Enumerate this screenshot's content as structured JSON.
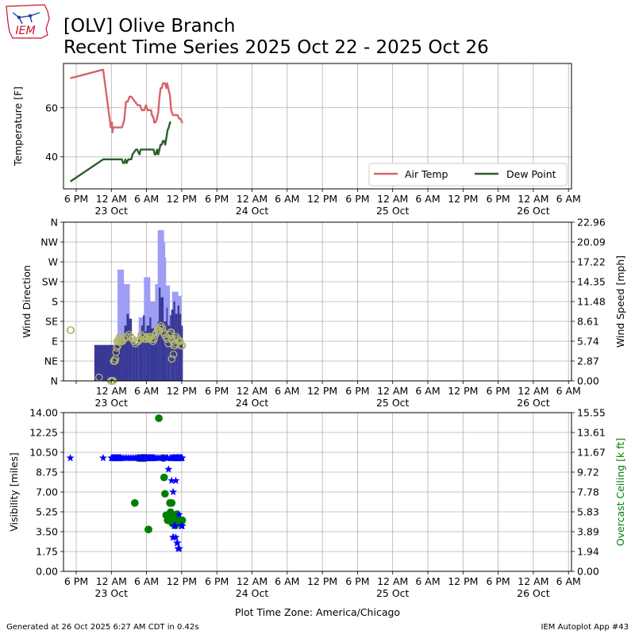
{
  "header": {
    "logo_text": "IEM",
    "title_line1": "[OLV] Olive Branch",
    "title_line2": "Recent Time Series 2025 Oct 22 - 2025 Oct 26"
  },
  "footer": {
    "generated": "Generated at 26 Oct 2025 6:27 AM CDT in 0.42s",
    "app": "IEM Autoplot App #43"
  },
  "colors": {
    "air_temp": "#d9636a",
    "dew_point": "#2e5e2e",
    "wind_speed": "#383896",
    "wind_gust": "#9e9ef5",
    "wind_dir_marker": "#b3b56b",
    "visibility": "#0000ff",
    "ceiling": "#008000"
  },
  "chart_data": [
    {
      "type": "line",
      "ylabel": "Temperature [F]",
      "ylim": [
        27,
        78
      ],
      "yticks": [
        40,
        60
      ],
      "legend_placement": "lower-right",
      "grid": true,
      "x_tick_labels": [
        "6 PM",
        "12 AM",
        "6 AM",
        "12 PM",
        "6 PM",
        "12 AM",
        "6 AM",
        "12 PM",
        "6 PM",
        "12 AM",
        "6 AM",
        "12 PM",
        "6 PM",
        "12 AM",
        "6 AM"
      ],
      "x_date_labels": [
        "23 Oct",
        "24 Oct",
        "25 Oct",
        "26 Oct"
      ],
      "series": [
        {
          "name": "Air Temp",
          "x": [
            -1.0,
            4.6,
            5.9,
            6.1,
            6.2,
            6.3,
            6.4,
            6.7,
            7.8,
            8.2,
            8.5,
            8.8,
            9.1,
            9.4,
            10.5,
            10.9,
            11.2,
            11.6,
            11.9,
            12.2,
            12.8,
            12.9,
            13.0,
            13.1,
            13.2,
            13.3,
            13.5,
            13.7,
            14.0,
            14.2,
            14.4,
            14.6,
            14.8,
            15.1,
            15.4,
            15.5,
            15.7,
            15.9,
            16.0,
            16.2,
            16.5,
            17.3,
            17.6,
            17.8,
            18.1,
            18.2
          ],
          "y": [
            72,
            75.5,
            52,
            54,
            50,
            52,
            52,
            52,
            52,
            55,
            62.5,
            62.5,
            64.5,
            64.5,
            61,
            61,
            59,
            59,
            61,
            59,
            59,
            57,
            57,
            56,
            56,
            54,
            54,
            55,
            58,
            64,
            68,
            68,
            70,
            70,
            68,
            70,
            68,
            66,
            65,
            59,
            57,
            57,
            55.5,
            55.5,
            54,
            54
          ]
        },
        {
          "name": "Dew Point",
          "x": [
            -1.0,
            4.6,
            7.8,
            8.0,
            8.2,
            8.4,
            8.6,
            8.9,
            9.1,
            9.4,
            9.6,
            10.2,
            10.4,
            10.8,
            11.0,
            11.6,
            12.2,
            12.8,
            13.2,
            13.4,
            13.6,
            13.8,
            14.0,
            14.2,
            14.4,
            14.6,
            14.8,
            15.0,
            15.2,
            15.4,
            15.6,
            15.8,
            16.0,
            16.2
          ],
          "y": [
            30,
            39,
            39,
            37.5,
            37.5,
            39,
            37.5,
            39,
            39,
            39,
            41,
            43,
            43,
            41,
            43,
            43,
            43,
            43,
            43,
            41,
            41,
            43,
            41,
            43,
            45,
            45,
            46.5,
            46.5,
            45,
            48,
            51,
            52,
            54,
            54
          ]
        }
      ]
    },
    {
      "type": "bar",
      "ylabel": "Wind Direction",
      "y2label": "Wind Speed [mph]",
      "ylim": [
        0,
        360
      ],
      "yticks": [
        "N",
        "NE",
        "E",
        "SE",
        "S",
        "SW",
        "W",
        "NW",
        "N"
      ],
      "y2lim": [
        0,
        22.96
      ],
      "y2ticks": [
        "0.00",
        "2.87",
        "5.74",
        "8.61",
        "11.48",
        "14.35",
        "17.22",
        "20.09",
        "22.96"
      ],
      "grid": true,
      "x_tick_labels": [
        "12 AM",
        "6 AM",
        "12 PM",
        "6 PM",
        "12 AM",
        "6 AM",
        "12 PM",
        "6 PM",
        "12 AM",
        "6 AM",
        "12 PM",
        "6 PM",
        "12 AM",
        "6 AM"
      ],
      "x_date_labels": [
        "23 Oct",
        "24 Oct",
        "25 Oct",
        "26 Oct"
      ],
      "speed_segments": [
        {
          "start": 3.1,
          "end": 7.8,
          "speed": 5.2
        },
        {
          "start": 7.8,
          "end": 8.2,
          "speed": 6.3
        },
        {
          "start": 8.2,
          "end": 8.6,
          "speed": 8.0
        },
        {
          "start": 8.6,
          "end": 9.0,
          "speed": 9.7
        },
        {
          "start": 9.0,
          "end": 9.5,
          "speed": 9.0
        },
        {
          "start": 9.5,
          "end": 10.1,
          "speed": 5.7
        },
        {
          "start": 10.1,
          "end": 10.6,
          "speed": 5.5
        },
        {
          "start": 10.6,
          "end": 11.1,
          "speed": 6.6
        },
        {
          "start": 11.1,
          "end": 11.4,
          "speed": 8.0
        },
        {
          "start": 11.4,
          "end": 11.7,
          "speed": 9.5
        },
        {
          "start": 11.7,
          "end": 12.0,
          "speed": 7.2
        },
        {
          "start": 12.0,
          "end": 12.5,
          "speed": 8.0
        },
        {
          "start": 12.5,
          "end": 12.8,
          "speed": 9.2
        },
        {
          "start": 12.8,
          "end": 13.4,
          "speed": 7.6
        },
        {
          "start": 13.4,
          "end": 13.9,
          "speed": 6.6
        },
        {
          "start": 13.9,
          "end": 14.1,
          "speed": 8.6
        },
        {
          "start": 14.1,
          "end": 14.4,
          "speed": 13.5
        },
        {
          "start": 14.4,
          "end": 14.9,
          "speed": 12.1
        },
        {
          "start": 14.9,
          "end": 15.4,
          "speed": 8.6
        },
        {
          "start": 15.4,
          "end": 15.6,
          "speed": 10.6
        },
        {
          "start": 15.6,
          "end": 16.0,
          "speed": 8.0
        },
        {
          "start": 16.0,
          "end": 16.2,
          "speed": 9.5
        },
        {
          "start": 16.2,
          "end": 16.6,
          "speed": 10.3
        },
        {
          "start": 16.6,
          "end": 16.9,
          "speed": 11.5
        },
        {
          "start": 16.9,
          "end": 17.3,
          "speed": 9.7
        },
        {
          "start": 17.3,
          "end": 17.6,
          "speed": 10.9
        },
        {
          "start": 17.6,
          "end": 17.9,
          "speed": 9.7
        },
        {
          "start": 17.9,
          "end": 18.2,
          "speed": 8.0
        }
      ],
      "gusts": [
        {
          "x": 7.6,
          "speed": 16.1
        },
        {
          "x": 8.6,
          "speed": 14.0
        },
        {
          "x": 11.2,
          "speed": 9.2
        },
        {
          "x": 12.1,
          "speed": 15.0
        },
        {
          "x": 13.1,
          "speed": 11.5
        },
        {
          "x": 14.0,
          "speed": 14.0
        },
        {
          "x": 14.45,
          "speed": 21.8
        },
        {
          "x": 14.65,
          "speed": 20.1
        },
        {
          "x": 14.8,
          "speed": 17.8
        },
        {
          "x": 15.45,
          "speed": 13.8
        },
        {
          "x": 16.9,
          "speed": 12.9
        },
        {
          "x": 17.4,
          "speed": 12.3
        }
      ],
      "direction_points": {
        "x": [
          -1.0,
          3.9,
          5.9,
          6.0,
          6.1,
          6.2,
          6.3,
          6.4,
          6.5,
          6.6,
          6.7,
          6.8,
          6.9,
          7.0,
          7.1,
          7.2,
          7.3,
          7.4,
          7.5,
          7.6,
          7.7,
          7.9,
          8.2,
          8.5,
          8.8,
          9.0,
          9.3,
          9.6,
          9.9,
          10.1,
          10.4,
          10.6,
          10.9,
          11.1,
          11.3,
          11.5,
          11.7,
          11.9,
          12.1,
          12.3,
          12.5,
          12.7,
          12.9,
          13.1,
          13.3,
          13.5,
          13.7,
          13.9,
          14.1,
          14.3,
          14.5,
          14.7,
          14.9,
          15.1,
          15.3,
          15.5,
          15.7,
          15.9,
          16.1,
          16.3,
          16.5,
          16.7,
          16.9,
          17.1,
          17.3,
          17.5,
          17.7,
          17.9,
          18.1,
          -0.9,
          16.2,
          16.3,
          16.6,
          16.8,
          16.85
        ],
        "y": [
          115,
          8,
          0,
          0,
          0,
          0,
          0,
          45,
          45,
          45,
          50,
          65,
          75,
          90,
          80,
          90,
          95,
          100,
          90,
          90,
          90,
          90,
          95,
          100,
          100,
          105,
          100,
          95,
          90,
          85,
          90,
          90,
          95,
          105,
          100,
          100,
          95,
          95,
          100,
          95,
          100,
          100,
          95,
          90,
          95,
          105,
          110,
          115,
          115,
          120,
          125,
          120,
          110,
          105,
          100,
          95,
          85,
          105,
          110,
          95,
          90,
          80,
          95,
          100,
          95,
          90,
          90,
          80,
          80,
          115,
          110,
          50,
          60,
          80,
          85
        ]
      }
    },
    {
      "type": "scatter",
      "ylabel": "Visibility [miles]",
      "y2label": "Overcast Ceiling [k ft]",
      "ylim": [
        0,
        14
      ],
      "yticks": [
        "0.00",
        "1.75",
        "3.50",
        "5.25",
        "7.00",
        "8.75",
        "10.50",
        "12.25",
        "14.00"
      ],
      "y2lim": [
        0,
        15.55
      ],
      "y2ticks": [
        "0.00",
        "1.94",
        "3.89",
        "5.83",
        "7.78",
        "9.72",
        "11.67",
        "13.61",
        "15.55"
      ],
      "xlabel": "Plot Time Zone: America/Chicago",
      "grid": true,
      "x_tick_labels": [
        "6 PM",
        "12 AM",
        "6 AM",
        "12 PM",
        "6 PM",
        "12 AM",
        "6 AM",
        "12 PM",
        "6 PM",
        "12 AM",
        "6 AM",
        "12 PM",
        "6 PM",
        "12 AM",
        "6 AM"
      ],
      "x_date_labels": [
        "23 Oct",
        "24 Oct",
        "25 Oct",
        "26 Oct"
      ],
      "visibility": {
        "x": [
          -1.0,
          4.6,
          6.0,
          6.1,
          6.2,
          6.3,
          6.4,
          6.5,
          6.6,
          6.7,
          6.8,
          6.9,
          7.0,
          7.1,
          7.2,
          7.3,
          7.4,
          7.5,
          7.6,
          7.7,
          8.0,
          8.3,
          8.6,
          8.9,
          9.2,
          9.5,
          9.8,
          10.1,
          10.4,
          10.7,
          11.0,
          11.1,
          11.2,
          11.3,
          11.4,
          11.5,
          11.6,
          11.7,
          11.8,
          11.9,
          12.0,
          12.1,
          12.2,
          12.3,
          12.4,
          12.5,
          12.6,
          12.7,
          12.8,
          12.9,
          13.0,
          13.1,
          13.2,
          13.3,
          13.5,
          13.8,
          14.1,
          14.4,
          14.7,
          15.0,
          15.3,
          15.6,
          16.0,
          16.2,
          16.4,
          16.5,
          16.6,
          16.7,
          16.8,
          16.9,
          17.0,
          17.1,
          17.2,
          17.3,
          17.4,
          17.5,
          17.6,
          17.7,
          17.8,
          17.9,
          18.0,
          18.1,
          16.5,
          16.6,
          17.0,
          17.2,
          17.3,
          17.4,
          17.6,
          17.9,
          18.0,
          18.1,
          15.5,
          15.75,
          16.3,
          16.55,
          16.7,
          16.9,
          17.0,
          17.25,
          17.55
        ],
        "y": [
          10,
          10,
          10,
          10,
          10,
          10,
          10,
          10,
          10,
          10,
          10,
          10,
          10,
          10,
          10,
          10,
          10,
          10,
          10,
          10,
          10,
          10,
          10,
          10,
          10,
          10,
          10,
          10,
          10,
          10,
          10,
          10,
          10,
          10,
          10,
          10,
          10,
          10,
          10,
          10,
          10,
          10,
          10,
          10,
          10,
          10,
          10,
          10,
          10,
          10,
          10,
          10,
          10,
          10,
          10,
          10,
          10,
          10,
          10,
          10,
          10,
          10,
          10,
          10,
          10,
          10,
          10,
          10,
          10,
          10,
          10,
          10,
          10,
          10,
          10,
          10,
          10,
          10,
          10,
          10,
          10,
          10,
          3.0,
          3.0,
          3.0,
          2.5,
          2.5,
          2.0,
          2.0,
          4.0,
          4.0,
          4.0,
          10,
          9.0,
          8.0,
          7.0,
          4.0,
          4.0,
          8.0,
          10,
          5.0
        ]
      },
      "ceiling": {
        "x": [
          10.0,
          10.6,
          10.8,
          10.9,
          11.0,
          11.1,
          11.2,
          11.3,
          11.4,
          11.5,
          11.6,
          11.7,
          12.3,
          12.35,
          14.1,
          14.85,
          15.0,
          15.15,
          15.35,
          15.6,
          15.7,
          15.8,
          15.9,
          16.0,
          16.1,
          16.15,
          16.2,
          16.3,
          16.4,
          16.5,
          16.6,
          16.7,
          16.8,
          16.9,
          17.0,
          17.1,
          17.2,
          17.3,
          17.4,
          17.5,
          17.6,
          17.7,
          17.8,
          17.9,
          18.0,
          18.1
        ],
        "y": [
          6.7,
          11.1,
          11.1,
          11.1,
          11.1,
          11.1,
          11.1,
          11.1,
          11.1,
          11.1,
          11.1,
          11.1,
          4.1,
          4.1,
          15.0,
          11.1,
          9.2,
          7.6,
          5.5,
          5.0,
          5.0,
          5.0,
          5.0,
          6.7,
          5.8,
          5.6,
          5.6,
          6.7,
          4.7,
          4.8,
          5.0,
          5.0,
          4.8,
          4.5,
          5.0,
          5.0,
          5.6,
          5.0,
          4.9,
          5.0,
          5.0,
          5.0,
          5.0,
          4.8,
          5.0,
          5.0
        ]
      }
    }
  ]
}
